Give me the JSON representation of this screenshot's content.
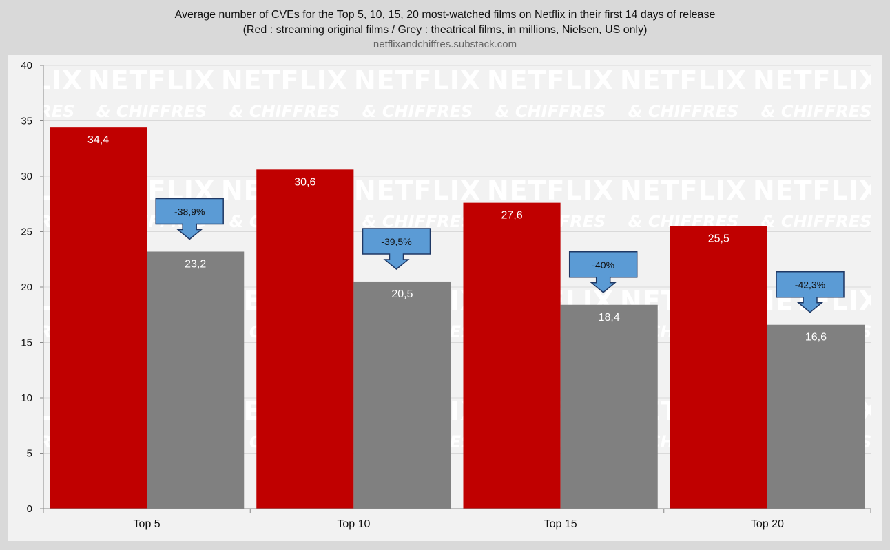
{
  "header": {
    "title": "Average number of CVEs for the Top 5, 10, 15, 20 most-watched films on Netflix in their first 14 days of release",
    "subtitle": "(Red : streaming original films / Grey : theatrical films, in millions, Nielsen, US only)",
    "source": "netflixandchiffres.substack.com"
  },
  "watermark": {
    "line1": "NETFLIX",
    "line2": "& CHIFFRES"
  },
  "colors": {
    "streaming": "#c00000",
    "theatrical": "#808080",
    "annotation_fill": "#5b9bd5",
    "annotation_border": "#1f3864",
    "background": "#d9d9d9",
    "plot_background": "#f2f2f2"
  },
  "chart_data": {
    "type": "bar",
    "title": "Average number of CVEs for the Top 5, 10, 15, 20 most-watched films on Netflix in their first 14 days of release",
    "xlabel": "",
    "ylabel": "",
    "categories": [
      "Top 5",
      "Top 10",
      "Top 15",
      "Top 20"
    ],
    "series": [
      {
        "values": [
          34.4,
          30.6,
          27.6,
          25.5
        ],
        "labels": [
          "34,4",
          "30,6",
          "27,6",
          "25,5"
        ],
        "color": "#c00000"
      },
      {
        "values": [
          23.2,
          20.5,
          18.4,
          16.6
        ],
        "labels": [
          "23,2",
          "20,5",
          "18,4",
          "16,6"
        ],
        "color": "#808080"
      }
    ],
    "annotations": [
      "-38,9%",
      "-39,5%",
      "-40%",
      "-42,3%"
    ],
    "ylim": [
      0,
      40
    ],
    "yticks": [
      0,
      5,
      10,
      15,
      20,
      25,
      30,
      35,
      40
    ],
    "grid": true,
    "legend": "none"
  }
}
